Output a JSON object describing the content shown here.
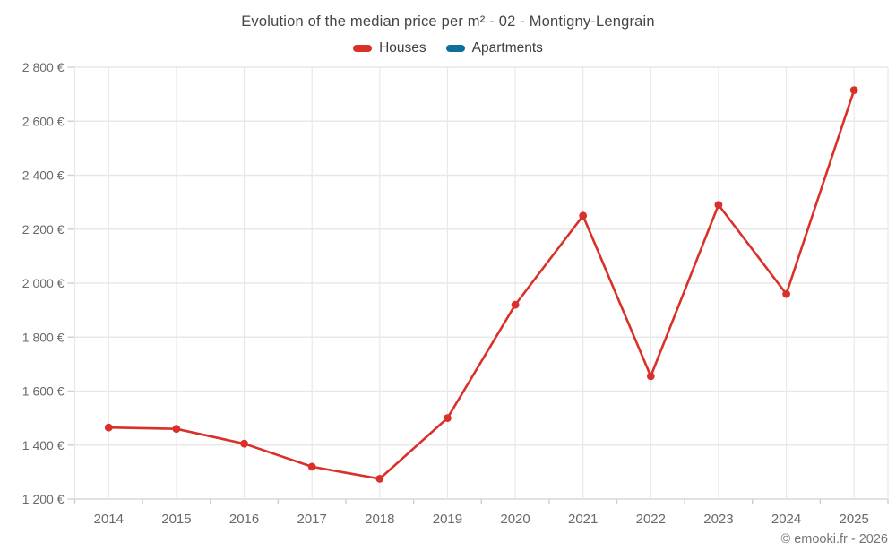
{
  "header": {
    "title": "Evolution of the median price per m² - 02 - Montigny-Lengrain"
  },
  "legend": {
    "items": [
      {
        "label": "Houses",
        "color": "#d9312a"
      },
      {
        "label": "Apartments",
        "color": "#0f6e9e"
      }
    ]
  },
  "footer": {
    "copyright": "© emooki.fr - 2026"
  },
  "chart_data": {
    "type": "line",
    "title": "Evolution of the median price per m² - 02 - Montigny-Lengrain",
    "categories": [
      "2014",
      "2015",
      "2016",
      "2017",
      "2018",
      "2019",
      "2020",
      "2021",
      "2022",
      "2023",
      "2024",
      "2025"
    ],
    "series": [
      {
        "name": "Houses",
        "color": "#d9312a",
        "values": [
          1465,
          1460,
          1405,
          1320,
          1275,
          1500,
          1920,
          2250,
          1655,
          2290,
          1960,
          2715
        ]
      },
      {
        "name": "Apartments",
        "color": "#0f6e9e",
        "values": []
      }
    ],
    "xlabel": "",
    "ylabel": "",
    "ylim": [
      1200,
      2800
    ],
    "ytick_step": 200,
    "ytick_labels": [
      "1 200 €",
      "1 400 €",
      "1 600 €",
      "1 800 €",
      "2 000 €",
      "2 200 €",
      "2 400 €",
      "2 600 €",
      "2 800 €"
    ],
    "grid": true,
    "legend_position": "top",
    "marker": "circle"
  },
  "colors": {
    "background": "#ffffff",
    "grid": "#e8e8e8",
    "axis_line": "#d9d9d9",
    "tick": "#cfcfcf",
    "axis_label": "#666a6d",
    "title_text": "#424649",
    "legend_text": "#3a3e41",
    "footer_text": "#757575"
  }
}
